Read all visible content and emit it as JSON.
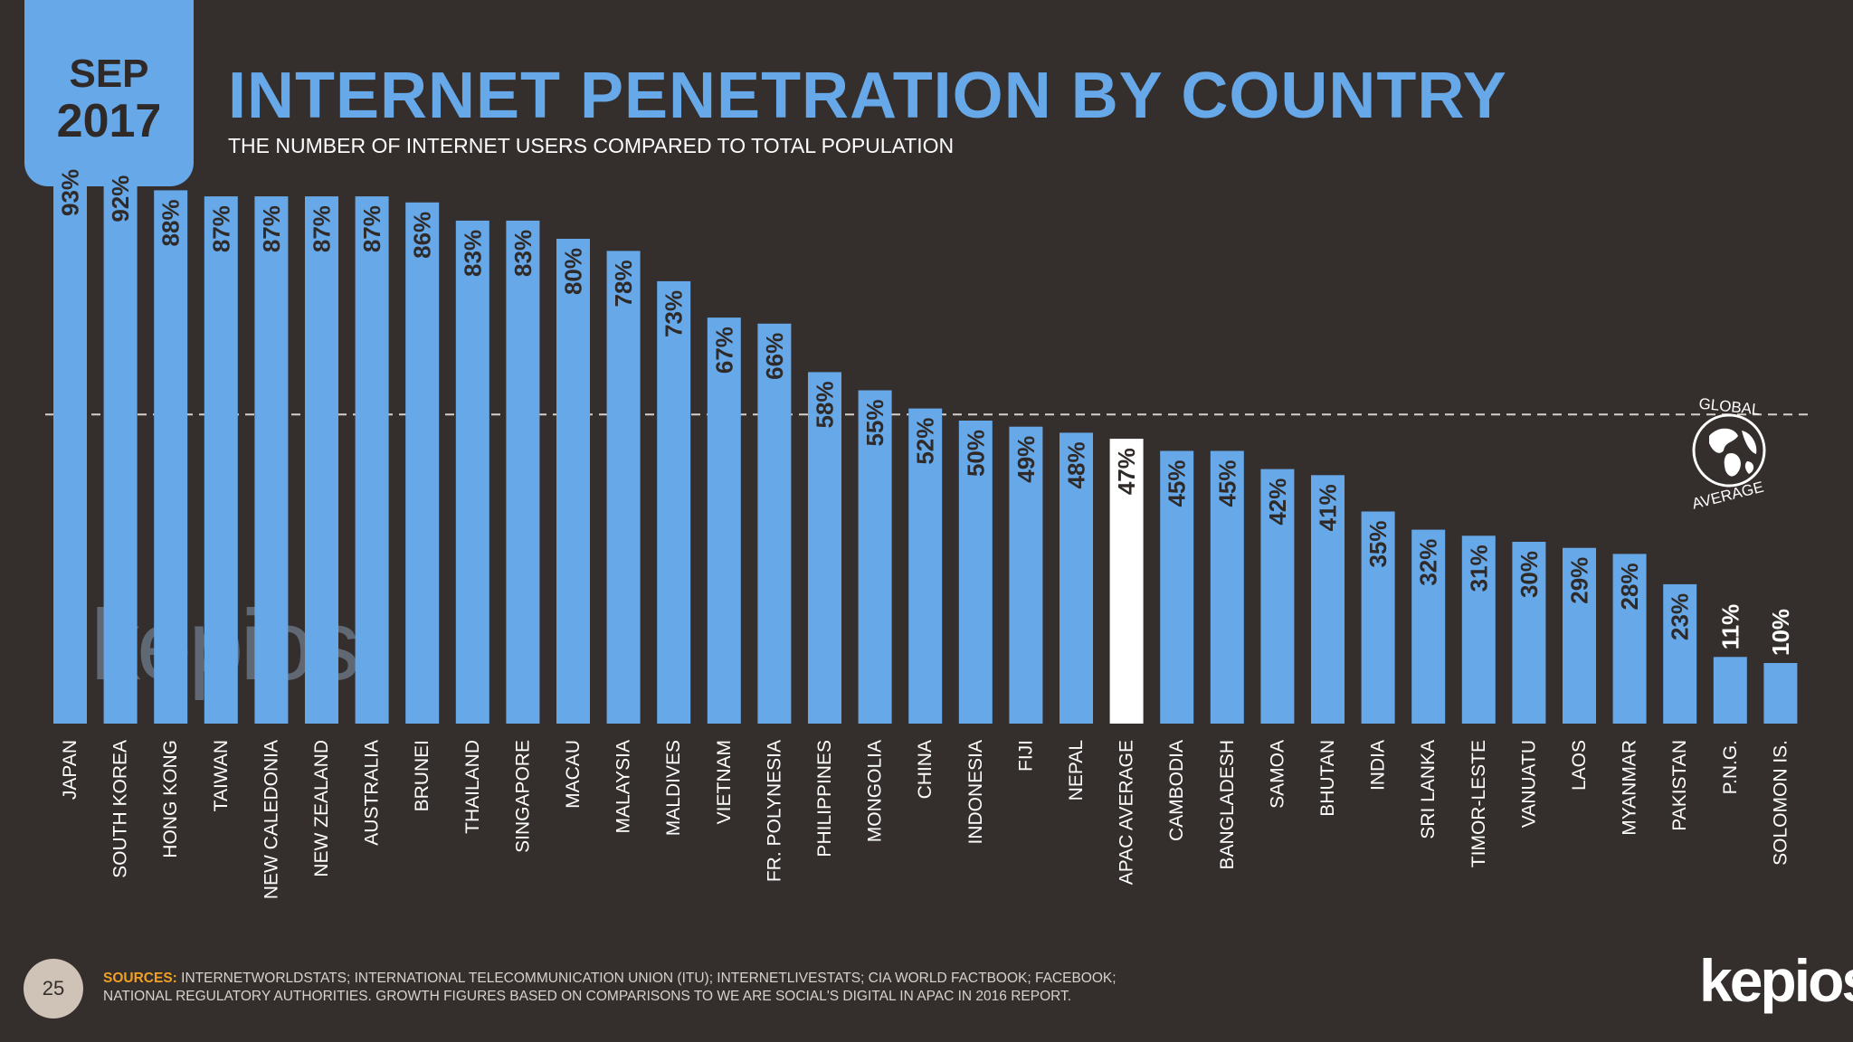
{
  "header": {
    "month": "SEP",
    "year": "2017",
    "title": "INTERNET PENETRATION BY COUNTRY",
    "subtitle": "THE NUMBER OF INTERNET USERS COMPARED TO TOTAL POPULATION"
  },
  "global_average": {
    "line1": "GLOBAL",
    "line2": "AVERAGE",
    "icon": "globe-icon"
  },
  "colors": {
    "background": "#342e2c",
    "bar": "#66a8e8",
    "highlight_bar": "#ffffff",
    "bar_label": "#2f2a28",
    "axis_label": "#ffffff",
    "sources_label": "#f0a024"
  },
  "chart_data": {
    "type": "bar",
    "categories": [
      "JAPAN",
      "SOUTH KOREA",
      "HONG KONG",
      "TAIWAN",
      "NEW CALEDONIA",
      "NEW ZEALAND",
      "AUSTRALIA",
      "BRUNEI",
      "THAILAND",
      "SINGAPORE",
      "MACAU",
      "MALAYSIA",
      "MALDIVES",
      "VIETNAM",
      "FR. POLYNESIA",
      "PHILIPPINES",
      "MONGOLIA",
      "CHINA",
      "INDONESIA",
      "FIJI",
      "NEPAL",
      "APAC AVERAGE",
      "CAMBODIA",
      "BANGLADESH",
      "SAMOA",
      "BHUTAN",
      "INDIA",
      "SRI LANKA",
      "TIMOR-LESTE",
      "VANUATU",
      "LAOS",
      "MYANMAR",
      "PAKISTAN",
      "P.N.G.",
      "SOLOMON IS."
    ],
    "values": [
      93,
      92,
      88,
      87,
      87,
      87,
      87,
      86,
      83,
      83,
      80,
      78,
      73,
      67,
      66,
      58,
      55,
      52,
      50,
      49,
      48,
      47,
      45,
      45,
      42,
      41,
      35,
      32,
      31,
      30,
      29,
      28,
      23,
      11,
      10
    ],
    "labels": [
      "93%",
      "92%",
      "88%",
      "87%",
      "87%",
      "87%",
      "87%",
      "86%",
      "83%",
      "83%",
      "80%",
      "78%",
      "73%",
      "67%",
      "66%",
      "58%",
      "55%",
      "52%",
      "50%",
      "49%",
      "48%",
      "47%",
      "45%",
      "45%",
      "42%",
      "41%",
      "35%",
      "32%",
      "31%",
      "30%",
      "29%",
      "28%",
      "23%",
      "11%",
      "10%"
    ],
    "highlight": "APAC AVERAGE",
    "reference_line": 51,
    "ylim": [
      0,
      100
    ],
    "grid": false,
    "legend": "none"
  },
  "watermark": "kepios",
  "footer": {
    "page_number": "25",
    "sources_label": "SOURCES:",
    "sources_line1": " INTERNETWORLDSTATS; INTERNATIONAL TELECOMMUNICATION UNION (ITU); INTERNETLIVESTATS; CIA WORLD FACTBOOK; FACEBOOK;",
    "sources_line2": "NATIONAL REGULATORY AUTHORITIES. GROWTH FIGURES BASED ON COMPARISONS TO WE ARE SOCIAL'S DIGITAL IN APAC IN 2016 REPORT.",
    "logo": "kepios"
  }
}
